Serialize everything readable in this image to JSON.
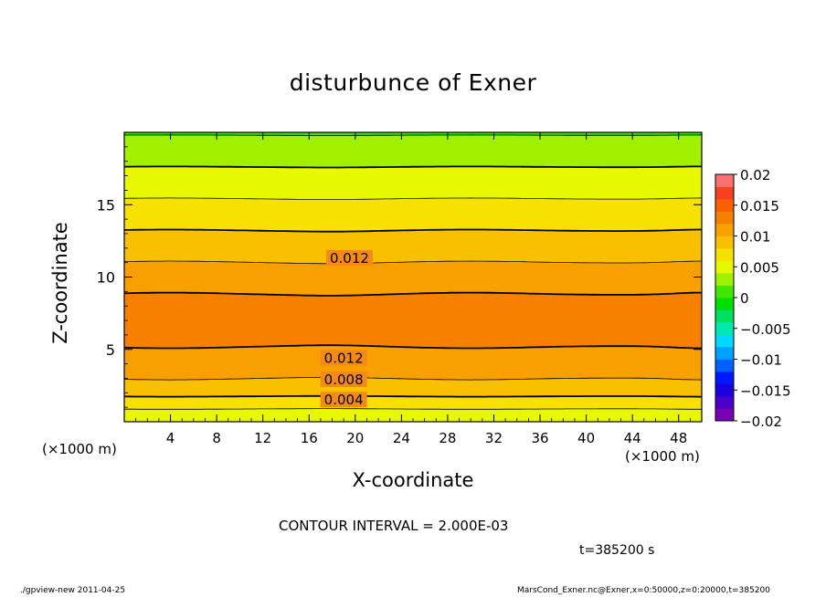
{
  "chart_data": {
    "type": "heatmap",
    "subtype": "filled contour",
    "title": "disturbunce of Exner",
    "xlabel": "X-coordinate",
    "ylabel": "Z-coordinate",
    "x_unit_label": "(×1000 m)",
    "xlim": [
      0,
      50
    ],
    "ylim": [
      0,
      20
    ],
    "x_ticks": [
      "4",
      "8",
      "12",
      "16",
      "20",
      "24",
      "28",
      "32",
      "36",
      "40",
      "44",
      "48"
    ],
    "y_ticks": [
      "5",
      "10",
      "15"
    ],
    "colorbar": {
      "levels": [
        -0.02,
        -0.018,
        -0.016,
        -0.014,
        -0.012,
        -0.01,
        -0.008,
        -0.006,
        -0.004,
        -0.002,
        0,
        0.002,
        0.004,
        0.006,
        0.008,
        0.01,
        0.012,
        0.014,
        0.016,
        0.018,
        0.02
      ],
      "tick_labels": [
        "0.02",
        "0.015",
        "0.01",
        "0.005",
        "0",
        "−0.005",
        "−0.01",
        "−0.015",
        "−0.02"
      ],
      "colors": [
        "#7a00b4",
        "#4a00c8",
        "#1a00e0",
        "#0018ff",
        "#0060ff",
        "#00a0ff",
        "#00d8ff",
        "#00e8b0",
        "#00e060",
        "#00e000",
        "#40e800",
        "#a0f000",
        "#e8f800",
        "#f8e000",
        "#f8c000",
        "#f8a000",
        "#f88000",
        "#f86000",
        "#f84020",
        "#f87070"
      ]
    },
    "contour_labels": [
      {
        "text": "0.012",
        "x": 19.5,
        "z": 11.3
      },
      {
        "text": "0.012",
        "x": 19.0,
        "z": 4.4
      },
      {
        "text": "0.008",
        "x": 19.0,
        "z": 2.9
      },
      {
        "text": "0.004",
        "x": 19.0,
        "z": 1.5
      }
    ],
    "annotations": {
      "contour_interval": "CONTOUR INTERVAL = 2.000E-03",
      "time": "t=385200 s",
      "footer_left": "./gpview-new  2011-04-25",
      "footer_right": "MarsCond_Exner.nc@Exner,x=0:50000,z=0:20000,t=385200"
    },
    "grid": false
  }
}
